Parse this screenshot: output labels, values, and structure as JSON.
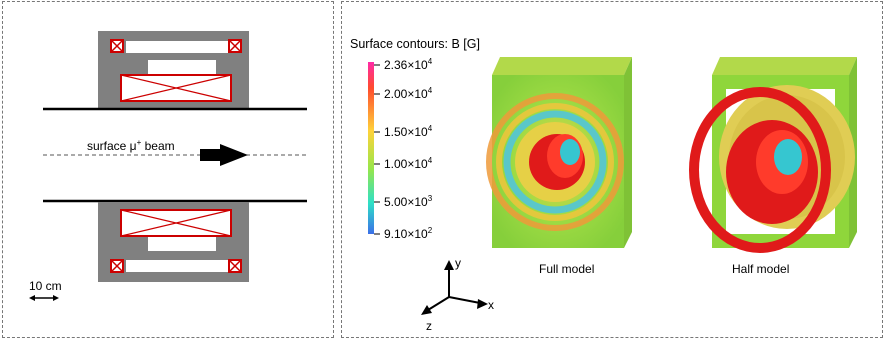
{
  "left_panel": {
    "beam_label": "surface μ",
    "beam_label_sup": "+",
    "beam_label_suffix": " beam",
    "scale_label": "10 cm"
  },
  "right_panel": {
    "colorbar_title": "Surface contours: B [G]",
    "colorbar_ticks": [
      {
        "mantissa": "2.36×10",
        "exp": "4"
      },
      {
        "mantissa": "2.00×10",
        "exp": "4"
      },
      {
        "mantissa": "1.50×10",
        "exp": "4"
      },
      {
        "mantissa": "1.00×10",
        "exp": "4"
      },
      {
        "mantissa": "5.00×10",
        "exp": "3"
      },
      {
        "mantissa": "9.10×10",
        "exp": "2"
      }
    ],
    "colorbar_colors": [
      "#ff2aa8",
      "#ff4b2e",
      "#ffd23a",
      "#98e64a",
      "#2ee0c6",
      "#3b6fe8"
    ],
    "model_labels": [
      "Full model",
      "Half model"
    ],
    "axes": {
      "x": "x",
      "y": "y",
      "z": "z"
    }
  },
  "colors": {
    "iron": "#808080",
    "coil": "#cc0000",
    "field_bg": "#8fd63b",
    "field_hot": "#e61a1a"
  }
}
